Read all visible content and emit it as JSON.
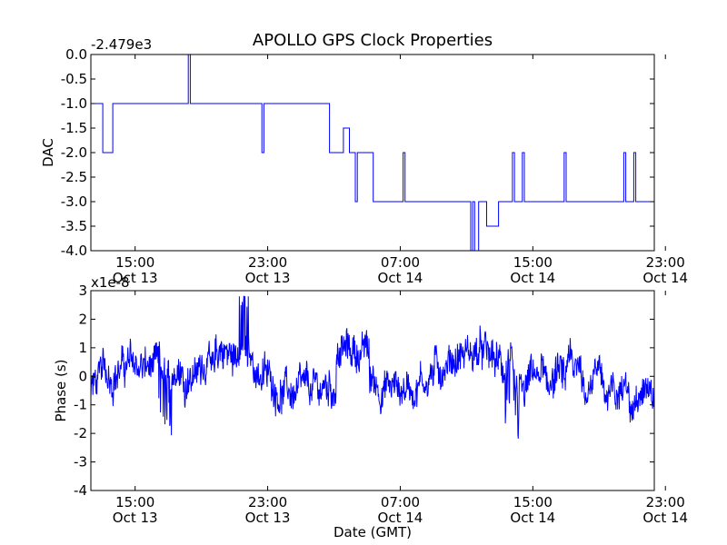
{
  "chart_data": [
    {
      "type": "line",
      "title": "APOLLO GPS Clock Properties",
      "ylabel": "DAC",
      "xlabel": "",
      "offset_label": "-2.479e3",
      "ylim": [
        -4.0,
        0.0
      ],
      "xlim_hours": [
        0,
        34
      ],
      "yticks": [
        "0.0",
        "-0.5",
        "-1.0",
        "-1.5",
        "-2.0",
        "-2.5",
        "-3.0",
        "-3.5",
        "-4.0"
      ],
      "xticks": [
        {
          "time": "15:00",
          "date": "Oct 13"
        },
        {
          "time": "23:00",
          "date": "Oct 13"
        },
        {
          "time": "07:00",
          "date": "Oct 14"
        },
        {
          "time": "15:00",
          "date": "Oct 14"
        },
        {
          "time": "23:00",
          "date": "Oct 14"
        }
      ],
      "color": "#0000ff"
    },
    {
      "type": "line",
      "title": "",
      "ylabel": "Phase (s)",
      "xlabel": "Date (GMT)",
      "offset_label": "x1e-8",
      "ylim": [
        -4,
        3
      ],
      "xlim_hours": [
        0,
        34
      ],
      "yticks": [
        "3",
        "2",
        "1",
        "0",
        "-1",
        "-2",
        "-3",
        "-4"
      ],
      "xticks": [
        {
          "time": "15:00",
          "date": "Oct 13"
        },
        {
          "time": "23:00",
          "date": "Oct 13"
        },
        {
          "time": "07:00",
          "date": "Oct 14"
        },
        {
          "time": "15:00",
          "date": "Oct 14"
        },
        {
          "time": "23:00",
          "date": "Oct 14"
        }
      ],
      "color": "#0000ff"
    }
  ]
}
